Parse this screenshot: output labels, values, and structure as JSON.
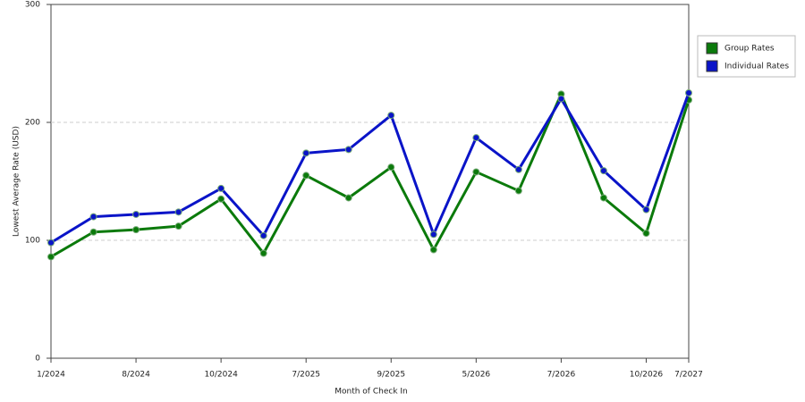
{
  "chart_data": {
    "type": "line",
    "x_label": "Month of Check In",
    "y_label": "Lowest Average Rate (USD)",
    "categories": [
      "1/2024",
      null,
      "8/2024",
      null,
      "10/2024",
      null,
      "7/2025",
      null,
      "9/2025",
      null,
      "5/2026",
      null,
      "7/2026",
      null,
      "10/2026",
      "7/2027"
    ],
    "series": [
      {
        "name": "Group Rates",
        "color": "#0b7a0b",
        "values": [
          86,
          107,
          109,
          112,
          135,
          89,
          155,
          136,
          162,
          92,
          158,
          142,
          224,
          136,
          106,
          219
        ]
      },
      {
        "name": "Individual Rates",
        "color": "#0a14c8",
        "values": [
          98,
          120,
          122,
          124,
          144,
          104,
          174,
          177,
          206,
          105,
          187,
          160,
          220,
          159,
          126,
          225
        ]
      }
    ],
    "ylim": [
      0,
      300
    ],
    "yticks": [
      0,
      100,
      200,
      300
    ],
    "grid": true,
    "legend": "right"
  }
}
